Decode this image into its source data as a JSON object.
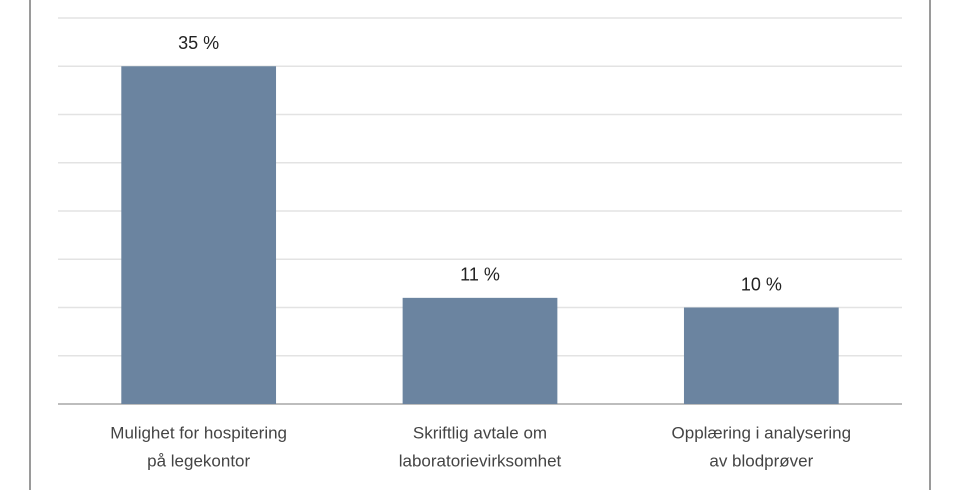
{
  "chart_data": {
    "type": "bar",
    "categories": [
      [
        "Mulighet for hospitering",
        "på legekontor"
      ],
      [
        "Skriftlig avtale om",
        "laboratorievirksomhet"
      ],
      [
        "Opplæring i analysering",
        "av blodprøver"
      ]
    ],
    "values": [
      35,
      11,
      10
    ],
    "value_labels": [
      "35 %",
      "11 %",
      "10 %"
    ],
    "color": "#6b84a0",
    "ylim": [
      0,
      40
    ],
    "yticks": [
      0,
      5,
      10,
      15,
      20,
      25,
      30,
      35,
      40
    ],
    "grid": true
  }
}
